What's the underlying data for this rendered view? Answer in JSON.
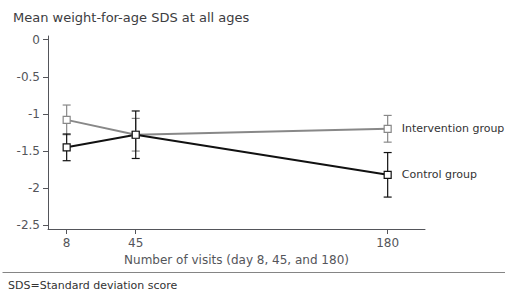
{
  "chart_data": {
    "type": "line",
    "title": "Mean weight-for-age SDS at all ages",
    "xlabel": "Number of visits (day 8, 45, and 180)",
    "footnote": "SDS=Standard deviation score",
    "x": [
      8,
      45,
      180
    ],
    "series": [
      {
        "name": "Intervention group",
        "color": "#888888",
        "marker": "square",
        "values": [
          -1.08,
          -1.28,
          -1.2
        ],
        "yerr_low": [
          0.2,
          0.22,
          0.18
        ],
        "yerr_high": [
          0.2,
          0.22,
          0.18
        ]
      },
      {
        "name": "Control group",
        "color": "#111111",
        "marker": "square",
        "values": [
          -1.45,
          -1.28,
          -1.82
        ],
        "yerr_low": [
          0.18,
          0.32,
          0.3
        ],
        "yerr_high": [
          0.18,
          0.32,
          0.3
        ]
      }
    ],
    "xlim": [
      -2,
      200
    ],
    "xticks": [
      8,
      45,
      180
    ],
    "ylim": [
      -2.55,
      0.05
    ],
    "yticks": [
      0,
      -0.5,
      -1,
      -1.5,
      -2,
      -2.5
    ],
    "grid": false
  }
}
